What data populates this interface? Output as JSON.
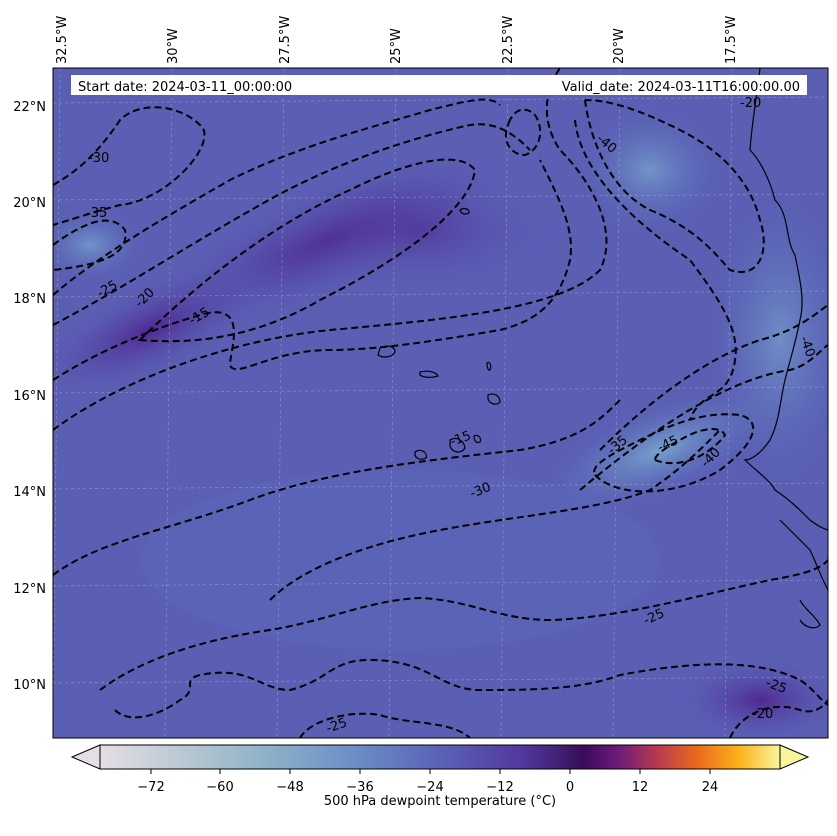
{
  "header": {
    "start_date": "Start date: 2024-03-11_00:00:00",
    "valid_date": "Valid_date: 2024-03-11T16:00:00.00"
  },
  "longitude_ticks": [
    {
      "label": "32.5°W",
      "lon": -32.5
    },
    {
      "label": "30°W",
      "lon": -30
    },
    {
      "label": "27.5°W",
      "lon": -27.5
    },
    {
      "label": "25°W",
      "lon": -25
    },
    {
      "label": "22.5°W",
      "lon": -22.5
    },
    {
      "label": "20°W",
      "lon": -20
    },
    {
      "label": "17.5°W",
      "lon": -17.5
    }
  ],
  "latitude_ticks": [
    {
      "label": "22°N",
      "lat": 22
    },
    {
      "label": "20°N",
      "lat": 20
    },
    {
      "label": "18°N",
      "lat": 18
    },
    {
      "label": "16°N",
      "lat": 16
    },
    {
      "label": "14°N",
      "lat": 14
    },
    {
      "label": "12°N",
      "lat": 12
    },
    {
      "label": "10°N",
      "lat": 10
    }
  ],
  "contour_labels": [
    "-30",
    "-35",
    "-25",
    "-20",
    "-15",
    "-40",
    "-20",
    "-40",
    "-35",
    "-45",
    "-40",
    "-15",
    "-30",
    "-25",
    "-25",
    "-20",
    "-25"
  ],
  "colorbar": {
    "ticks": [
      "−72",
      "−60",
      "−48",
      "−36",
      "−24",
      "−12",
      "0",
      "12",
      "24"
    ],
    "title": "500 hPa dewpoint temperature (°C)",
    "range": [
      -84,
      36
    ],
    "extend": "both"
  },
  "colors": {
    "field_base": "#5a5fb4",
    "field_dry": "#6b8cc8",
    "field_moist": "#57329a"
  }
}
